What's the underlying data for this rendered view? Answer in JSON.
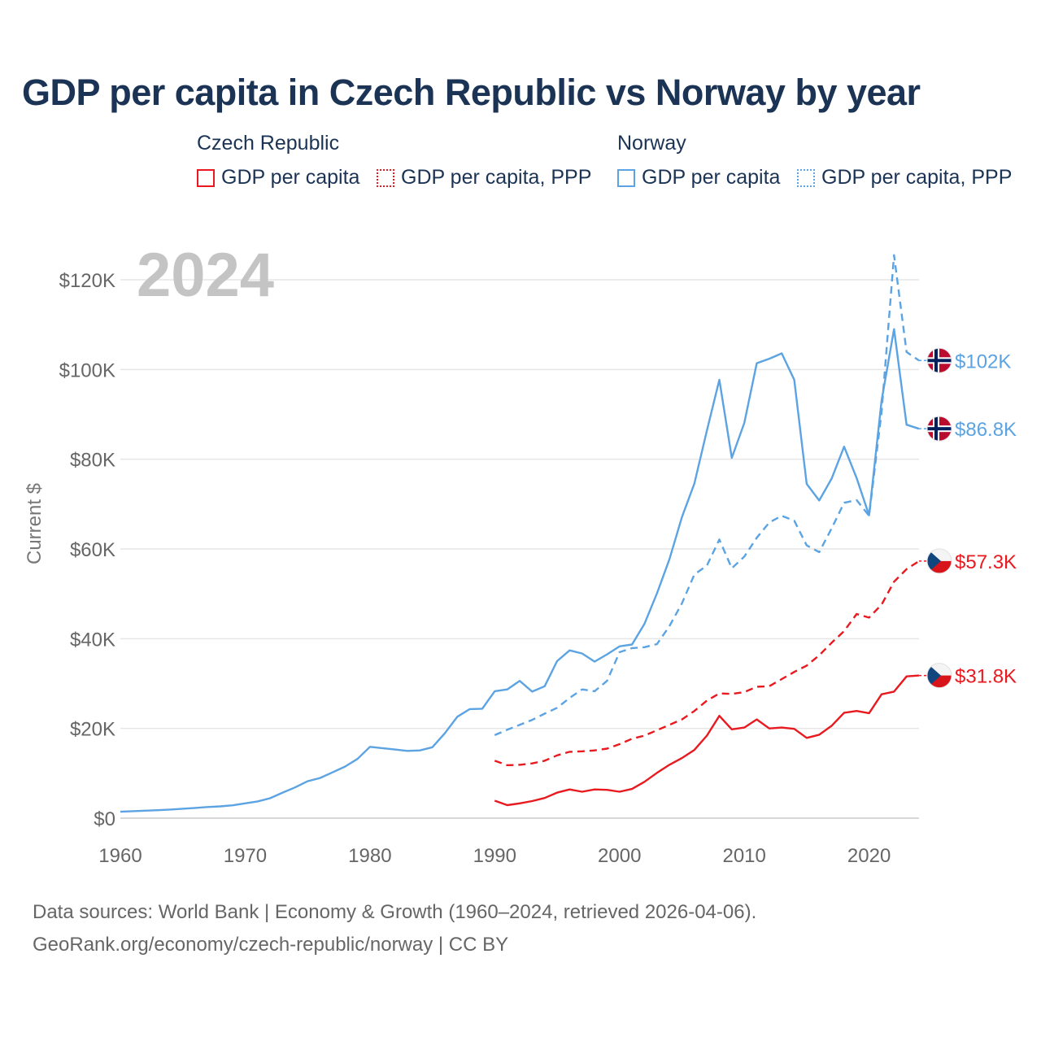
{
  "title": "GDP per capita in Czech Republic vs Norway by year",
  "legend": {
    "groups": [
      {
        "name": "Czech Republic",
        "items": [
          {
            "label": "GDP per capita",
            "style": "solid",
            "color": "#e8191f"
          },
          {
            "label": "GDP per capita, PPP",
            "style": "dotted",
            "color": "#e8191f"
          }
        ]
      },
      {
        "name": "Norway",
        "items": [
          {
            "label": "GDP per capita",
            "style": "solid",
            "color": "#5ba3e2"
          },
          {
            "label": "GDP per capita, PPP",
            "style": "dotted",
            "color": "#5ba3e2"
          }
        ]
      }
    ]
  },
  "year_label": "2024",
  "footer": {
    "line1": "Data sources: World Bank | Economy & Growth (1960–2024, retrieved 2026-04-06).",
    "line2": "GeoRank.org/economy/czech-republic/norway | CC BY"
  },
  "chart_data": {
    "type": "line",
    "title": "GDP per capita in Czech Republic vs Norway by year",
    "xlabel": "",
    "ylabel": "Current $",
    "xlim": [
      1960,
      2024
    ],
    "ylim": [
      0,
      120000
    ],
    "xticks": [
      1960,
      1970,
      1980,
      1990,
      2000,
      2010,
      2020
    ],
    "yticks": [
      0,
      20000,
      40000,
      60000,
      80000,
      100000,
      120000
    ],
    "ytick_labels": [
      "$0",
      "$20K",
      "$40K",
      "$60K",
      "$80K",
      "$100K",
      "$120K"
    ],
    "grid": true,
    "series": [
      {
        "name": "Norway GDP per capita",
        "color": "#5ba3e2",
        "dash": false,
        "end_label": "$86.8K",
        "flag": "norway",
        "x": [
          1960,
          1961,
          1962,
          1963,
          1964,
          1965,
          1966,
          1967,
          1968,
          1969,
          1970,
          1971,
          1972,
          1973,
          1974,
          1975,
          1976,
          1977,
          1978,
          1979,
          1980,
          1981,
          1982,
          1983,
          1984,
          1985,
          1986,
          1987,
          1988,
          1989,
          1990,
          1991,
          1992,
          1993,
          1994,
          1995,
          1996,
          1997,
          1998,
          1999,
          2000,
          2001,
          2002,
          2003,
          2004,
          2005,
          2006,
          2007,
          2008,
          2009,
          2010,
          2011,
          2012,
          2013,
          2014,
          2015,
          2016,
          2017,
          2018,
          2019,
          2020,
          2021,
          2022,
          2023,
          2024
        ],
        "values": [
          1440,
          1560,
          1670,
          1780,
          1920,
          2100,
          2280,
          2480,
          2630,
          2870,
          3300,
          3740,
          4450,
          5700,
          6850,
          8230,
          8960,
          10200,
          11500,
          13200,
          15900,
          15600,
          15300,
          15000,
          15100,
          15800,
          18900,
          22600,
          24300,
          24400,
          28300,
          28700,
          30600,
          28200,
          29400,
          35000,
          37400,
          36700,
          34900,
          36500,
          38300,
          38700,
          43300,
          50100,
          57700,
          67100,
          74600,
          86400,
          97700,
          80300,
          88100,
          101400,
          102400,
          103600,
          97700,
          74500,
          70800,
          75700,
          82800,
          75800,
          67500,
          93100,
          109000,
          87700,
          86800
        ]
      },
      {
        "name": "Norway GDP per capita, PPP",
        "color": "#5ba3e2",
        "dash": true,
        "end_label": "$102K",
        "flag": "norway",
        "x": [
          1990,
          1991,
          1992,
          1993,
          1994,
          1995,
          1996,
          1997,
          1998,
          1999,
          2000,
          2001,
          2002,
          2003,
          2004,
          2005,
          2006,
          2007,
          2008,
          2009,
          2010,
          2011,
          2012,
          2013,
          2014,
          2015,
          2016,
          2017,
          2018,
          2019,
          2020,
          2021,
          2022,
          2023,
          2024
        ],
        "values": [
          18500,
          19700,
          20800,
          21900,
          23300,
          24600,
          26800,
          28700,
          28300,
          30600,
          37000,
          37900,
          38100,
          38800,
          42800,
          47900,
          54300,
          56300,
          62100,
          55700,
          58300,
          62500,
          65900,
          67400,
          66300,
          60800,
          59300,
          64600,
          70300,
          70900,
          67400,
          90600,
          125500,
          103900,
          102000
        ]
      },
      {
        "name": "Czech Republic GDP per capita",
        "color": "#e8191f",
        "dash": false,
        "end_label": "$31.8K",
        "flag": "czech",
        "x": [
          1990,
          1991,
          1992,
          1993,
          1994,
          1995,
          1996,
          1997,
          1998,
          1999,
          2000,
          2001,
          2002,
          2003,
          2004,
          2005,
          2006,
          2007,
          2008,
          2009,
          2010,
          2011,
          2012,
          2013,
          2014,
          2015,
          2016,
          2017,
          2018,
          2019,
          2020,
          2021,
          2022,
          2023,
          2024
        ],
        "values": [
          3900,
          2900,
          3300,
          3800,
          4500,
          5700,
          6400,
          5900,
          6400,
          6300,
          5900,
          6500,
          8100,
          10100,
          11900,
          13400,
          15200,
          18400,
          22800,
          19800,
          20200,
          22000,
          20000,
          20200,
          19900,
          17900,
          18600,
          20600,
          23500,
          23900,
          23400,
          27600,
          28200,
          31600,
          31800
        ]
      },
      {
        "name": "Czech Republic GDP per capita, PPP",
        "color": "#e8191f",
        "dash": true,
        "end_label": "$57.3K",
        "flag": "czech",
        "x": [
          1990,
          1991,
          1992,
          1993,
          1994,
          1995,
          1996,
          1997,
          1998,
          1999,
          2000,
          2001,
          2002,
          2003,
          2004,
          2005,
          2006,
          2007,
          2008,
          2009,
          2010,
          2011,
          2012,
          2013,
          2014,
          2015,
          2016,
          2017,
          2018,
          2019,
          2020,
          2021,
          2022,
          2023,
          2024
        ],
        "values": [
          12800,
          11800,
          11900,
          12200,
          12800,
          14000,
          14800,
          14900,
          15100,
          15500,
          16500,
          17700,
          18400,
          19600,
          20800,
          22000,
          23900,
          26200,
          27800,
          27700,
          28100,
          29300,
          29400,
          31000,
          32600,
          34000,
          36300,
          39100,
          41700,
          45500,
          44700,
          47600,
          52700,
          55500,
          57300
        ]
      }
    ]
  }
}
